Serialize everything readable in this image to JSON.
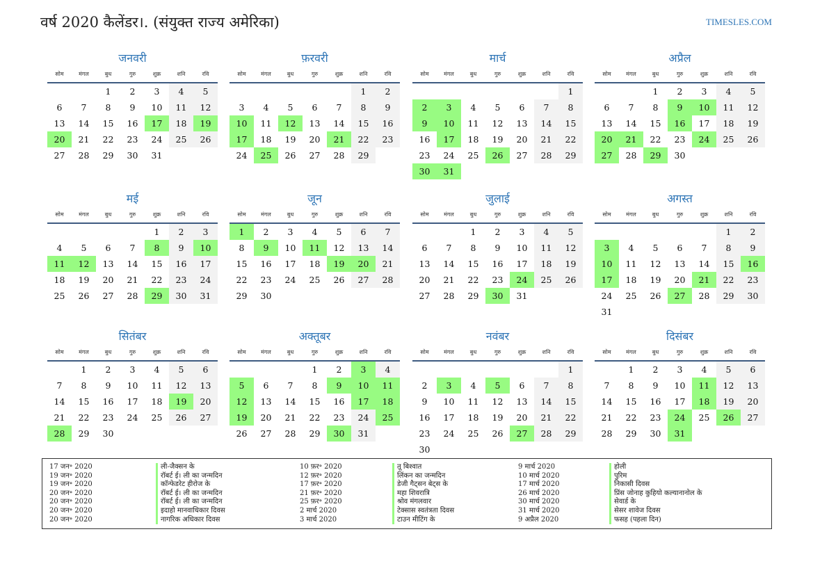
{
  "header": {
    "title": "वर्ष 2020 कैलेंडर।. (संयुक्त राज्य अमेरिका)",
    "site": "TIMESLES.COM"
  },
  "weekdays": [
    "सोम",
    "मंगल",
    "बुध",
    "गुरु",
    "शुक्र",
    "शनि",
    "रवि"
  ],
  "colors": {
    "holiday": "#98fb82",
    "weekend": "#f2f2f2",
    "accent": "#2e75b6"
  },
  "months": [
    {
      "name": "जनवरी",
      "offset": 2,
      "days": 31,
      "holidays": [
        17,
        19,
        20
      ]
    },
    {
      "name": "फ़रवरी",
      "offset": 5,
      "days": 29,
      "holidays": [
        10,
        12,
        17,
        21,
        25
      ]
    },
    {
      "name": "मार्च",
      "offset": 6,
      "days": 31,
      "holidays": [
        2,
        3,
        9,
        10,
        17,
        26,
        30,
        31
      ]
    },
    {
      "name": "अप्रैल",
      "offset": 2,
      "days": 30,
      "holidays": [
        9,
        10,
        16,
        20,
        21,
        24,
        27,
        29
      ]
    },
    {
      "name": "मई",
      "offset": 4,
      "days": 31,
      "holidays": [
        8,
        10,
        11,
        12,
        29
      ]
    },
    {
      "name": "जून",
      "offset": 0,
      "days": 30,
      "holidays": [
        1,
        9,
        11,
        19,
        20
      ]
    },
    {
      "name": "जुलाई",
      "offset": 2,
      "days": 31,
      "holidays": [
        24,
        30
      ]
    },
    {
      "name": "अगस्त",
      "offset": 5,
      "days": 31,
      "holidays": [
        3,
        10,
        16,
        17,
        21,
        27
      ]
    },
    {
      "name": "सितंबर",
      "offset": 1,
      "days": 30,
      "holidays": [
        19,
        28
      ]
    },
    {
      "name": "अक्तूबर",
      "offset": 3,
      "days": 31,
      "holidays": [
        3,
        5,
        9,
        10,
        11,
        12,
        17,
        18,
        19,
        25,
        30
      ]
    },
    {
      "name": "नवंबर",
      "offset": 6,
      "days": 30,
      "holidays": [
        3,
        5,
        27
      ]
    },
    {
      "name": "दिसंबर",
      "offset": 1,
      "days": 31,
      "holidays": [
        11,
        18,
        24,
        26,
        31
      ]
    }
  ],
  "legend": [
    [
      [
        "17 जन॰ 2020",
        "ली-जैक्सन के"
      ],
      [
        "19 जन॰ 2020",
        "रॉबर्ट ई। ली का जन्मदिन"
      ],
      [
        "19 जन॰ 2020",
        "कॉन्फेडरेट हीरोज के"
      ],
      [
        "20 जन॰ 2020",
        "रॉबर्ट ई। ली का जन्मदिन"
      ],
      [
        "20 जन॰ 2020",
        "रॉबर्ट ई। ली का जन्मदिन"
      ],
      [
        "20 जन॰ 2020",
        "इदाहो मानवाधिकार दिवस"
      ],
      [
        "20 जन॰ 2020",
        "नागरिक अधिकार दिवस"
      ]
    ],
    [
      [
        "10 फ़र॰ 2020",
        "तू बिश्वात"
      ],
      [
        "12 फ़र॰ 2020",
        "लिंकन का जन्मदिन"
      ],
      [
        "17 फ़र॰ 2020",
        "डेजी गैट्सन बेट्स के"
      ],
      [
        "21 फ़र॰ 2020",
        "महा शिवरात्रि"
      ],
      [
        "25 फ़र॰ 2020",
        "श्रोव मंगलवार"
      ],
      [
        "2 मार्च 2020",
        "टेक्सास स्वतंत्रता दिवस"
      ],
      [
        "3 मार्च 2020",
        "टाउन मीटिंग के"
      ]
    ],
    [
      [
        "9 मार्च 2020",
        "होली"
      ],
      [
        "10 मार्च 2020",
        "पुरिम"
      ],
      [
        "17 मार्च 2020",
        "निकासी दिवस"
      ],
      [
        "26 मार्च 2020",
        "प्रिंस जोनाह कुहियो कल्यानानोल के"
      ],
      [
        "30 मार्च 2020",
        "सेवार्ड के"
      ],
      [
        "31 मार्च 2020",
        "सेसर शावेज दिवस"
      ],
      [
        "9 अप्रैल 2020",
        "फसह (पहला दिन)"
      ]
    ]
  ]
}
